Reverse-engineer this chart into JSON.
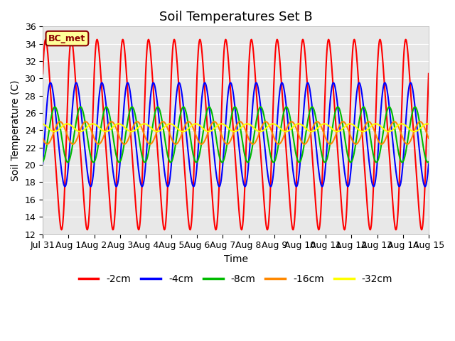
{
  "title": "Soil Temperatures Set B",
  "xlabel": "Time",
  "ylabel": "Soil Temperature (C)",
  "ylim": [
    12,
    36
  ],
  "yticks": [
    12,
    14,
    16,
    18,
    20,
    22,
    24,
    26,
    28,
    30,
    32,
    34,
    36
  ],
  "xtick_labels": [
    "Jul 31",
    "Aug 1",
    "Aug 2",
    "Aug 3",
    "Aug 4",
    "Aug 5",
    "Aug 6",
    "Aug 7",
    "Aug 8",
    "Aug 9",
    "Aug 10",
    "Aug 11",
    "Aug 12",
    "Aug 13",
    "Aug 14",
    "Aug 15"
  ],
  "series": [
    {
      "label": "-2cm",
      "color": "#ff0000",
      "amplitude": 11.0,
      "mean": 23.5,
      "period": 1.0,
      "phase": -0.08,
      "skew": 0.4
    },
    {
      "label": "-4cm",
      "color": "#0000ff",
      "amplitude": 6.0,
      "mean": 23.5,
      "period": 1.0,
      "phase": 0.08,
      "skew": 0.2
    },
    {
      "label": "-8cm",
      "color": "#00bb00",
      "amplitude": 3.2,
      "mean": 23.5,
      "period": 1.0,
      "phase": 0.22,
      "skew": 0.0
    },
    {
      "label": "-16cm",
      "color": "#ff8800",
      "amplitude": 1.3,
      "mean": 23.7,
      "period": 1.0,
      "phase": 0.42,
      "skew": 0.0
    },
    {
      "label": "-32cm",
      "color": "#ffff00",
      "amplitude": 0.45,
      "mean": 24.3,
      "period": 1.0,
      "phase": 0.7,
      "skew": 0.0
    }
  ],
  "annotation_text": "BC_met",
  "annotation_facecolor": "#ffff99",
  "annotation_edgecolor": "#8b0000",
  "background_color": "#e8e8e8",
  "figure_color": "#ffffff",
  "grid_color": "#ffffff",
  "title_fontsize": 13,
  "axis_label_fontsize": 10,
  "tick_fontsize": 9,
  "linewidth": 1.5
}
